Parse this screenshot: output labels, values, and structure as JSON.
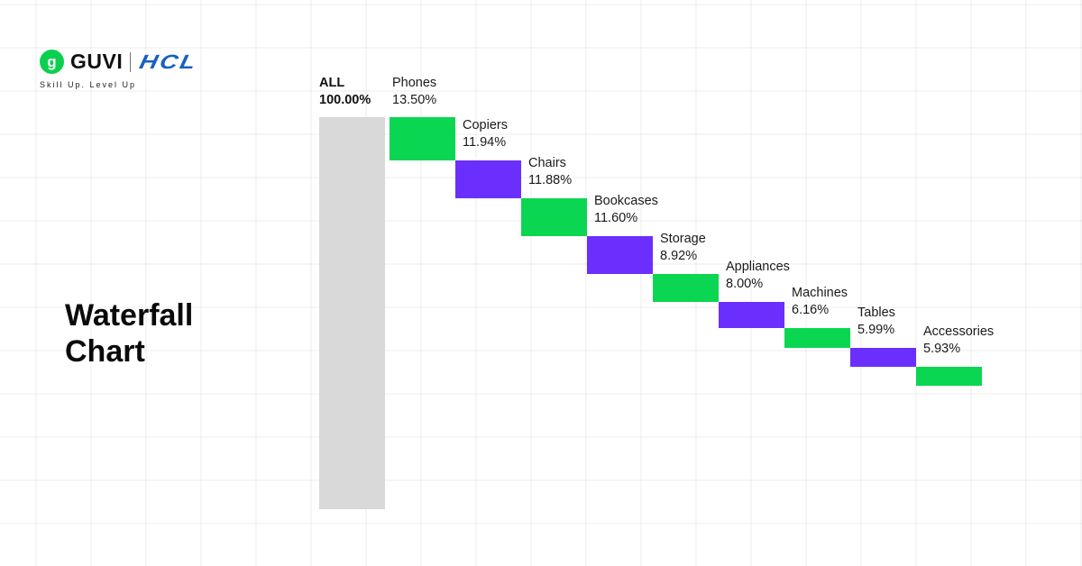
{
  "brand": {
    "logo_glyph": "g",
    "name": "GUVI",
    "partner": "HCL",
    "tagline": "Skill Up. Level Up",
    "colors": {
      "guvi_green": "#0bd04f",
      "hcl_blue": "#1760c2"
    }
  },
  "title": {
    "line1": "Waterfall",
    "line2": "Chart"
  },
  "chart_data": {
    "type": "waterfall",
    "title": "Waterfall Chart",
    "total": {
      "label": "ALL",
      "value_label": "100.00%",
      "value": 100.0,
      "color": "#d9d9d9"
    },
    "categories": [
      "Phones",
      "Copiers",
      "Chairs",
      "Bookcases",
      "Storage",
      "Appliances",
      "Machines",
      "Tables",
      "Accessories"
    ],
    "values": [
      13.5,
      11.94,
      11.88,
      11.6,
      8.92,
      8.0,
      6.16,
      5.99,
      5.93
    ],
    "value_labels": [
      "13.50%",
      "11.94%",
      "11.88%",
      "11.60%",
      "8.92%",
      "8.00%",
      "6.16%",
      "5.99%",
      "5.93%"
    ],
    "colors": [
      "#0bd651",
      "#6a2ffc",
      "#0bd651",
      "#6a2ffc",
      "#0bd651",
      "#6a2ffc",
      "#0bd651",
      "#6a2ffc",
      "#0bd651"
    ],
    "xlabel": "",
    "ylabel": "",
    "grid": false,
    "legend": false
  }
}
